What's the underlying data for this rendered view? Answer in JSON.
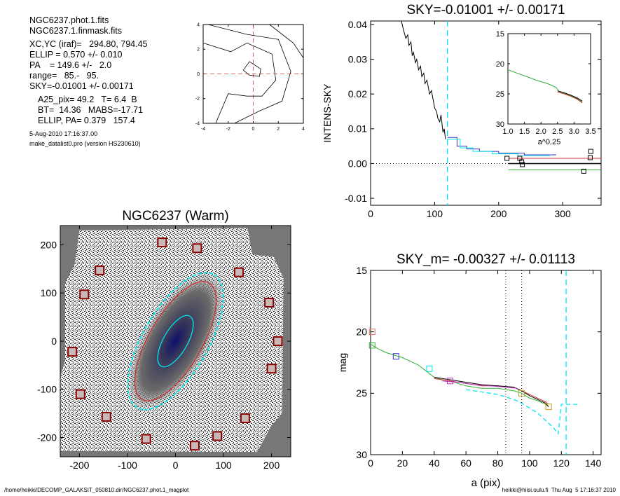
{
  "info": {
    "lines": [
      "NGC6237.phot.1.fits",
      "NGC6237.1.finmask.fits"
    ],
    "params": [
      "XC,YC (iraf)=   294.80, 794.45",
      "ELLIP = 0.570 +/- 0.010",
      "PA    = 149.6 +/-   2.0",
      "range=   85.-   95.",
      "SKY=-0.01001 +/- 0.00171"
    ],
    "results": [
      "A25_pix= 49.2   T= 6.4  B",
      "BT=  14.36   MABS=-17.71",
      "ELLIP, PA= 0.379   157.4"
    ],
    "date": "5-Aug-2010 17:16:37.00",
    "program": "make_datalist0.pro (version HS230610)"
  },
  "footer": {
    "left": "/home/heikki/DECOMP_GALAKSIT_050810.dir/NGC6237.phot.1_magplot",
    "right": "heikki@hiisi.oulu.fi  Thu Aug  5 17:16:37 2010"
  },
  "colors": {
    "cyan": "#00e5ee",
    "red": "#d03030",
    "green": "#30b030",
    "blue": "#3030c0",
    "magenta": "#c030c0",
    "orange": "#c8a020",
    "salmon": "#e07060"
  },
  "chart_data": [
    {
      "id": "contour",
      "type": "line",
      "title": "",
      "xlim": [
        -4,
        4
      ],
      "ylim": [
        -4,
        4
      ],
      "xticks": [
        -4,
        -2,
        0,
        2,
        4
      ],
      "yticks": [
        -4,
        -2,
        0,
        2,
        4
      ]
    },
    {
      "id": "sky",
      "type": "line",
      "title": "SKY=-0.01001 +/- 0.00171",
      "xlabel": "",
      "ylabel": "INTENS-SKY",
      "xlim": [
        0,
        360
      ],
      "ylim": [
        -0.012,
        0.041
      ],
      "xticks": [
        0,
        100,
        200,
        300
      ],
      "yticks": [
        "0.04",
        "0.03",
        "0.02",
        "0.01",
        "0.00",
        "-0.01"
      ],
      "ytick_values": [
        0.04,
        0.03,
        0.02,
        0.01,
        0.0,
        -0.01
      ],
      "series": [
        {
          "color": "black",
          "x": [
            48,
            52,
            55,
            58,
            60,
            63,
            65,
            67,
            70,
            72,
            75,
            78,
            80,
            83,
            85,
            88,
            90,
            92,
            95,
            98,
            100,
            103,
            105,
            108,
            110,
            113,
            115,
            117
          ],
          "y": [
            0.041,
            0.038,
            0.036,
            0.037,
            0.034,
            0.035,
            0.031,
            0.032,
            0.029,
            0.03,
            0.027,
            0.028,
            0.025,
            0.026,
            0.023,
            0.024,
            0.022,
            0.02,
            0.021,
            0.018,
            0.016,
            0.015,
            0.013,
            0.012,
            0.014,
            0.009,
            0.01,
            0.007
          ]
        },
        {
          "color": "blue",
          "x": [
            120,
            135,
            135,
            150,
            150,
            170,
            170,
            200,
            200,
            240,
            240,
            290
          ],
          "y": [
            0.0075,
            0.0075,
            0.005,
            0.005,
            0.0042,
            0.0042,
            0.0035,
            0.0035,
            0.003,
            0.003,
            0.0025,
            0.0025
          ]
        },
        {
          "color": "cyan",
          "x": [
            120,
            140,
            140,
            160,
            160,
            190,
            190,
            230,
            230,
            280
          ],
          "y": [
            0.007,
            0.007,
            0.0045,
            0.0045,
            0.0035,
            0.0035,
            0.0028,
            0.0028,
            0.0022,
            0.0022
          ]
        },
        {
          "color": "red",
          "x": [
            215,
            360
          ],
          "y": [
            0.0015,
            0.0015
          ]
        },
        {
          "color": "green",
          "x": [
            215,
            360
          ],
          "y": [
            -0.0018,
            -0.0018
          ]
        },
        {
          "color": "black",
          "x": [
            215,
            360
          ],
          "y": [
            0.0,
            0.0
          ]
        }
      ],
      "markers": [
        [
          213,
          0.0015
        ],
        [
          233,
          0.0015
        ],
        [
          237,
          -0.0003
        ],
        [
          236,
          0.0005
        ],
        [
          333,
          -0.0022
        ],
        [
          344,
          0.0035
        ],
        [
          343,
          0.0017
        ]
      ],
      "vline_x": 120
    },
    {
      "id": "sky-inset",
      "type": "line",
      "xlabel": "a^0.25",
      "xlim": [
        1.0,
        3.5
      ],
      "ylim": [
        30,
        15
      ],
      "xticks": [
        "1.0",
        "1.5",
        "2.0",
        "2.5",
        "3.0",
        "3.5"
      ],
      "xtick_values": [
        1.0,
        1.5,
        2.0,
        2.5,
        3.0,
        3.5
      ],
      "yticks": [
        "15",
        "20",
        "25",
        "30"
      ],
      "ytick_values": [
        15,
        20,
        25,
        30
      ],
      "series": [
        {
          "color": "green",
          "x": [
            1.0,
            1.3,
            1.6,
            1.9,
            2.2,
            2.45,
            2.55,
            2.7,
            2.9,
            3.1,
            3.25
          ],
          "y": [
            21.0,
            21.6,
            22.2,
            22.8,
            23.3,
            23.9,
            24.6,
            24.9,
            25.3,
            25.8,
            26.4
          ]
        },
        {
          "color": "black",
          "x": [
            2.5,
            2.7,
            2.9,
            3.1,
            3.25
          ],
          "y": [
            24.5,
            24.8,
            25.2,
            25.7,
            26.2
          ]
        },
        {
          "color": "red",
          "x": [
            2.5,
            2.7,
            2.9,
            3.1,
            3.25
          ],
          "y": [
            24.7,
            25.0,
            25.4,
            25.9,
            26.5
          ]
        }
      ]
    },
    {
      "id": "image",
      "type": "scatter",
      "title": "NGC6237 (Warm)",
      "xlim": [
        -240,
        240
      ],
      "ylim": [
        -240,
        240
      ],
      "xticks": [
        -200,
        -100,
        0,
        100,
        200
      ],
      "yticks": [
        -200,
        -100,
        0,
        100,
        200
      ],
      "boxes": [
        [
          -28,
          205
        ],
        [
          45,
          193
        ],
        [
          -158,
          147
        ],
        [
          132,
          143
        ],
        [
          -190,
          97
        ],
        [
          195,
          80
        ],
        [
          -215,
          -22
        ],
        [
          213,
          0
        ],
        [
          200,
          -57
        ],
        [
          -198,
          -110
        ],
        [
          -144,
          -157
        ],
        [
          145,
          -160
        ],
        [
          -61,
          -203
        ],
        [
          87,
          -197
        ],
        [
          40,
          -217
        ]
      ],
      "ellipses": [
        {
          "a": 60,
          "b": 25,
          "pa": -60,
          "color": "cyan"
        },
        {
          "a": 140,
          "b": 55,
          "pa": -60,
          "color": "red"
        },
        {
          "a": 160,
          "b": 68,
          "pa": -60,
          "color": "cyan"
        }
      ]
    },
    {
      "id": "mag",
      "type": "line",
      "title": "SKY_m= -0.00327 +/- 0.01113",
      "xlabel": "a (pix)",
      "ylabel": "mag",
      "xlim": [
        0,
        145
      ],
      "ylim": [
        30,
        15
      ],
      "xticks": [
        0,
        20,
        40,
        60,
        80,
        100,
        120,
        140
      ],
      "yticks": [
        15,
        20,
        25,
        30
      ],
      "series": [
        {
          "color": "green",
          "x": [
            0,
            5,
            10,
            15,
            20,
            25,
            30,
            35,
            40,
            45,
            50,
            55,
            60,
            65,
            70,
            75,
            80,
            85,
            90,
            95,
            100,
            105,
            110,
            112
          ],
          "y": [
            21.0,
            21.4,
            21.7,
            21.9,
            22.1,
            22.4,
            22.7,
            23.2,
            23.7,
            23.9,
            24.0,
            24.2,
            24.4,
            24.5,
            24.6,
            24.6,
            24.6,
            24.7,
            24.8,
            25.0,
            25.4,
            25.6,
            25.9,
            26.1
          ]
        },
        {
          "color": "red",
          "x": [
            40,
            50,
            60,
            70,
            80,
            90,
            95,
            100,
            105,
            110,
            112
          ],
          "y": [
            23.8,
            24.0,
            24.2,
            24.4,
            24.4,
            24.5,
            24.8,
            25.1,
            25.4,
            25.7,
            25.9
          ]
        },
        {
          "color": "black",
          "x": [
            40,
            50,
            60,
            70,
            80,
            90,
            95,
            100,
            105,
            110,
            112
          ],
          "y": [
            23.7,
            23.9,
            24.1,
            24.3,
            24.4,
            24.5,
            24.8,
            25.2,
            25.5,
            25.8,
            26.1
          ]
        },
        {
          "color": "magenta",
          "x": [
            45,
            55,
            65,
            75,
            85,
            92
          ],
          "y": [
            24.0,
            24.1,
            24.3,
            24.4,
            24.5,
            24.6
          ]
        },
        {
          "color": "cyan-dash",
          "x": [
            60,
            70,
            80,
            85,
            90,
            95,
            100,
            105,
            110,
            115,
            118,
            120,
            130
          ],
          "y": [
            24.7,
            24.9,
            25.1,
            25.3,
            25.5,
            25.8,
            26.2,
            26.6,
            27.2,
            27.8,
            28.3,
            25.9,
            25.9
          ]
        }
      ],
      "markers": [
        [
          1,
          20.0,
          "salmon"
        ],
        [
          1,
          21.1,
          "green"
        ],
        [
          16,
          22.0,
          "blue"
        ],
        [
          37,
          23.0,
          "cyan"
        ],
        [
          50,
          24.0,
          "magenta"
        ],
        [
          95,
          25.0,
          "orange"
        ],
        [
          112,
          26.1,
          "orange"
        ]
      ],
      "vlines_dotted": [
        85,
        95
      ],
      "vline_dashed": 123
    }
  ]
}
